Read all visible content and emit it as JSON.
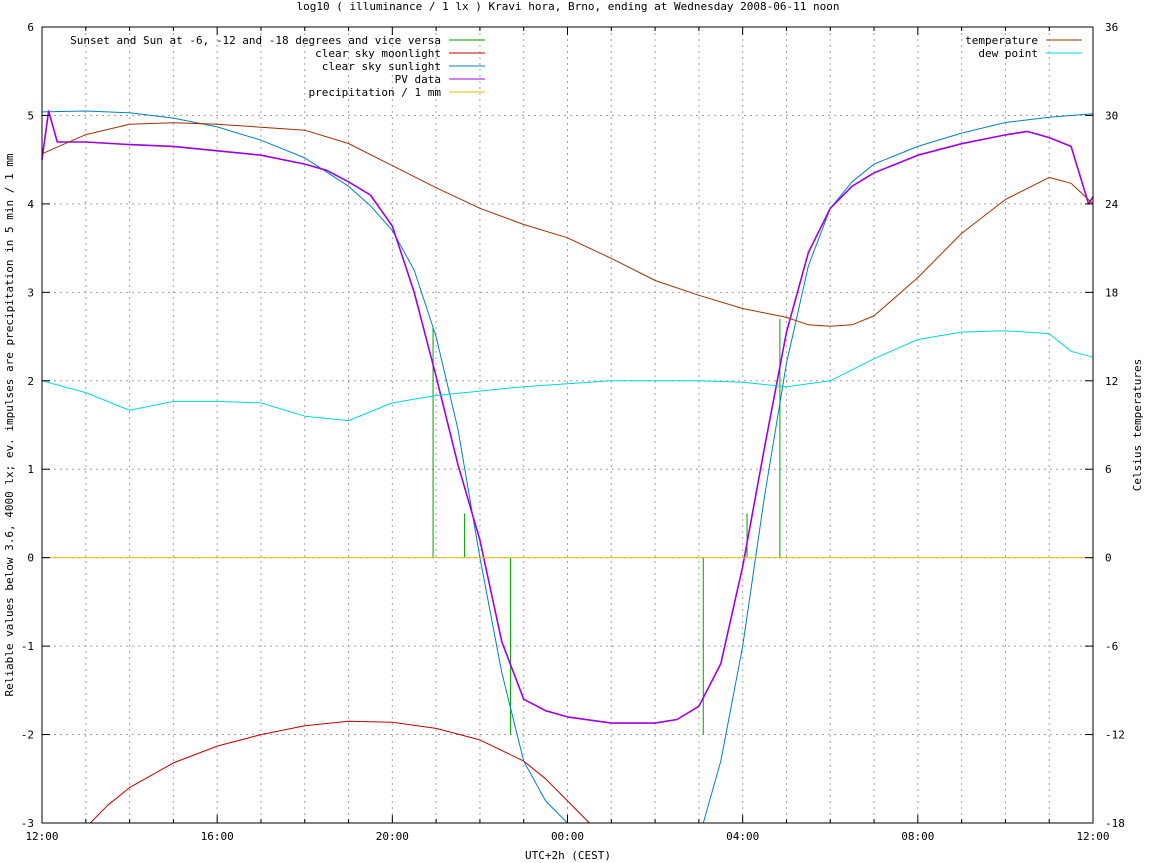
{
  "chart_data": {
    "type": "line",
    "title": "log10 ( illuminance / 1 lx ) Kravi hora, Brno, ending at Wednesday 2008-06-11 noon",
    "xlabel": "UTC+2h (CEST)",
    "ylabel": "Reliable values below 3.6, 4000 lx; ev. impulses are precipitation in 5 min / 1 mm",
    "y2label": "Celsius temperatures",
    "x_ticks": [
      "12:00",
      "16:00",
      "20:00",
      "00:00",
      "04:00",
      "08:00",
      "12:00"
    ],
    "x_range_hours": [
      12,
      36
    ],
    "ylim": [
      -3,
      6
    ],
    "y_ticks": [
      -3,
      -2,
      -1,
      0,
      1,
      2,
      3,
      4,
      5,
      6
    ],
    "y2lim": [
      -18,
      36
    ],
    "y2_ticks": [
      -18,
      -12,
      -6,
      0,
      6,
      12,
      18,
      24,
      30,
      36
    ],
    "grid": true,
    "legend_left": "top-left",
    "legend_right": "top-right",
    "colors": {
      "sunset": "#00a000",
      "moon": "#c00000",
      "sun": "#0080c0",
      "pv": "#a000e0",
      "precip": "#e0c000",
      "temp": "#a03000",
      "dew": "#00d8d8"
    },
    "series": [
      {
        "name": "Sunset and Sun at -6, -12 and -18 degrees and vice versa",
        "key": "sunset",
        "impulses": [
          [
            20.93,
            2.6
          ],
          [
            21.65,
            0.5
          ],
          [
            22.7,
            -2.0
          ],
          [
            27.1,
            -2.0
          ],
          [
            28.1,
            0.5
          ],
          [
            28.85,
            2.7
          ]
        ]
      },
      {
        "name": "clear sky moonlight",
        "key": "moon",
        "x": [
          13.1,
          13.5,
          14,
          15,
          16,
          17,
          18,
          19,
          20,
          21,
          22,
          23,
          23.5,
          24.0,
          24.5
        ],
        "values": [
          -3.0,
          -2.8,
          -2.6,
          -2.32,
          -2.13,
          -2.0,
          -1.9,
          -1.85,
          -1.86,
          -1.93,
          -2.06,
          -2.3,
          -2.5,
          -2.75,
          -3.0
        ]
      },
      {
        "name": "clear sky sunlight",
        "key": "sun",
        "x": [
          12,
          13,
          14,
          15,
          16,
          17,
          18,
          19,
          19.5,
          20,
          20.5,
          21,
          21.5,
          22,
          22.5,
          23,
          23.5,
          24.0,
          27.1,
          27.5,
          28,
          28.5,
          29,
          29.5,
          30,
          30.5,
          31,
          32,
          33,
          34,
          35,
          36
        ],
        "values": [
          5.04,
          5.05,
          5.03,
          4.97,
          4.87,
          4.72,
          4.52,
          4.2,
          3.98,
          3.7,
          3.25,
          2.5,
          1.45,
          0.0,
          -1.3,
          -2.3,
          -2.75,
          -3.0,
          -3.0,
          -2.3,
          -1.0,
          0.7,
          2.2,
          3.3,
          3.95,
          4.25,
          4.45,
          4.65,
          4.8,
          4.92,
          4.98,
          5.02
        ]
      },
      {
        "name": "PV data",
        "key": "pv",
        "x": [
          12,
          12.15,
          12.35,
          13,
          14,
          15,
          16,
          17,
          18,
          18.5,
          19,
          19.5,
          20,
          20.5,
          21,
          21.5,
          22,
          22.5,
          23,
          23.5,
          24.0,
          25,
          26,
          26.5,
          27,
          27.5,
          28,
          28.5,
          29,
          29.5,
          30,
          30.5,
          31,
          32,
          33,
          34,
          34.5,
          35,
          35.5,
          35.9,
          36
        ],
        "values": [
          4.5,
          5.05,
          4.7,
          4.7,
          4.67,
          4.65,
          4.6,
          4.55,
          4.45,
          4.38,
          4.25,
          4.1,
          3.75,
          3.0,
          2.05,
          1.05,
          0.2,
          -0.95,
          -1.6,
          -1.73,
          -1.8,
          -1.87,
          -1.87,
          -1.83,
          -1.68,
          -1.2,
          -0.1,
          1.25,
          2.55,
          3.45,
          3.95,
          4.2,
          4.35,
          4.55,
          4.68,
          4.78,
          4.82,
          4.75,
          4.65,
          4.0,
          4.08
        ]
      },
      {
        "name": "precipitation / 1 mm",
        "key": "precip",
        "x": [
          12,
          36
        ],
        "values": [
          0,
          0
        ]
      },
      {
        "name": "temperature",
        "key": "temp",
        "axis": "y2",
        "x": [
          12,
          13,
          14,
          15,
          16,
          17,
          18,
          19,
          20,
          21,
          22,
          23,
          24.0,
          25,
          26,
          27,
          28,
          29,
          29.5,
          30,
          30.5,
          31,
          32,
          33,
          34,
          35,
          35.5,
          36
        ],
        "values": [
          27.4,
          28.7,
          29.4,
          29.5,
          29.4,
          29.2,
          29.0,
          28.1,
          26.6,
          25.1,
          23.7,
          22.6,
          21.7,
          20.3,
          18.8,
          17.8,
          16.9,
          16.3,
          15.8,
          15.7,
          15.8,
          16.4,
          19.0,
          22.0,
          24.3,
          25.8,
          25.4,
          24.0
        ]
      },
      {
        "name": "dew point",
        "key": "dew",
        "axis": "y2",
        "x": [
          12,
          13,
          14,
          15,
          16,
          17,
          18,
          19,
          20,
          21,
          22,
          23,
          24.0,
          25,
          26,
          27,
          28,
          29,
          30,
          31,
          32,
          33,
          34,
          35,
          35.5,
          36
        ],
        "values": [
          12.0,
          11.2,
          10.0,
          10.6,
          10.6,
          10.5,
          9.6,
          9.3,
          10.5,
          11.0,
          11.3,
          11.6,
          11.8,
          12.0,
          12.0,
          12.0,
          11.9,
          11.6,
          12.0,
          13.5,
          14.8,
          15.3,
          15.4,
          15.2,
          14.0,
          13.6
        ]
      }
    ]
  }
}
